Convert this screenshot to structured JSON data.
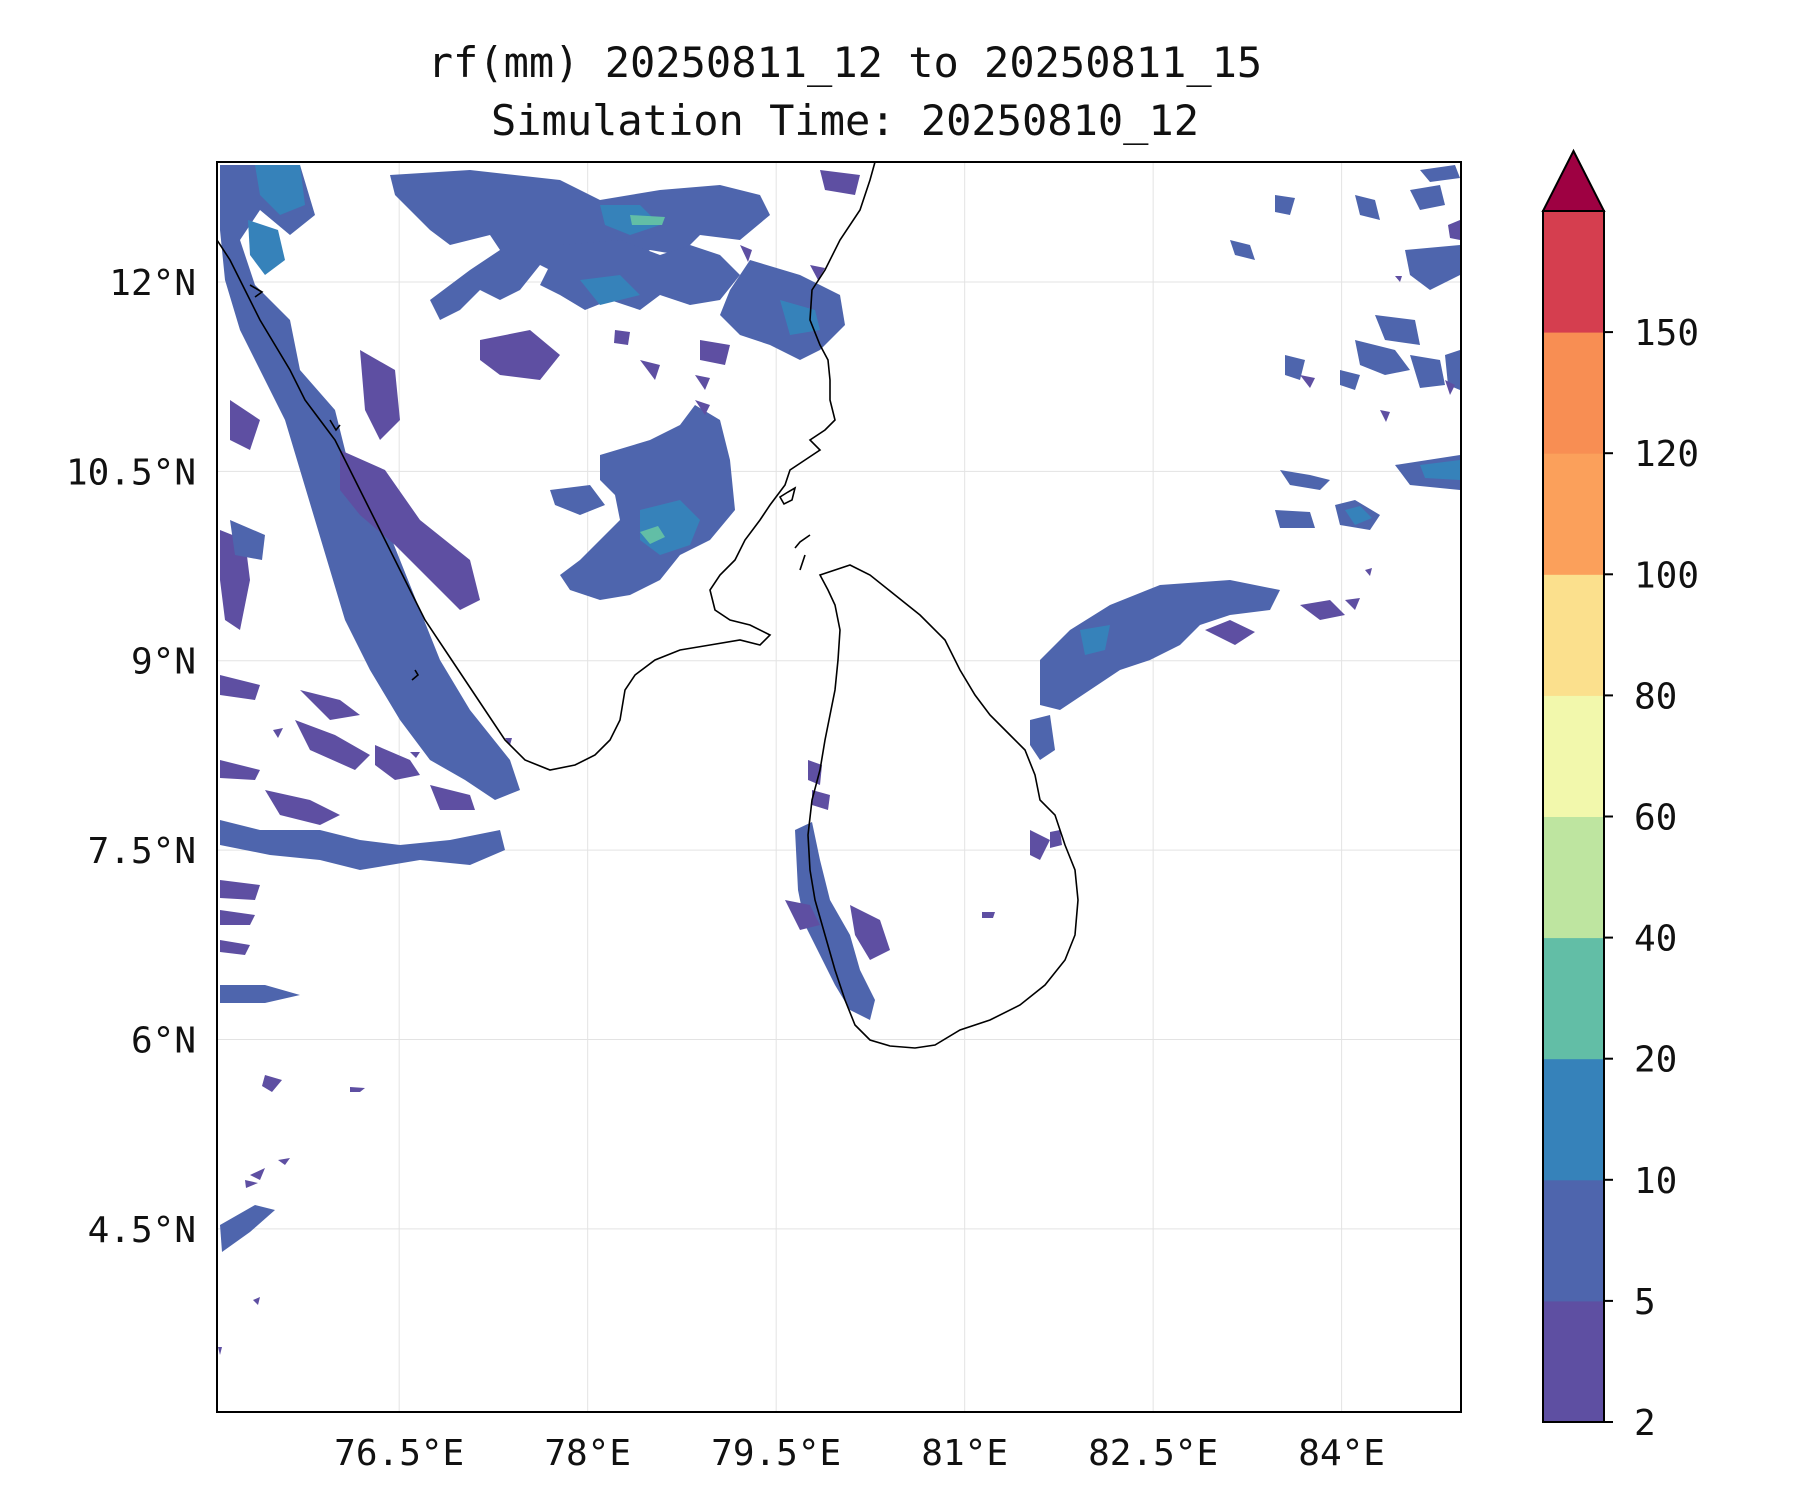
{
  "title_line1": "rf(mm) 20250811_12 to 20250811_15",
  "title_line2": "Simulation Time: 20250810_12",
  "map": {
    "lon_range": [
      75.05,
      84.95
    ],
    "lat_range": [
      3.05,
      12.95
    ],
    "x_ticks": [
      {
        "value": 76.5,
        "label": "76.5°E"
      },
      {
        "value": 78.0,
        "label": "78°E"
      },
      {
        "value": 79.5,
        "label": "79.5°E"
      },
      {
        "value": 81.0,
        "label": "81°E"
      },
      {
        "value": 82.5,
        "label": "82.5°E"
      },
      {
        "value": 84.0,
        "label": "84°E"
      }
    ],
    "y_ticks": [
      {
        "value": 12.0,
        "label": "12°N"
      },
      {
        "value": 10.5,
        "label": "10.5°N"
      },
      {
        "value": 9.0,
        "label": "9°N"
      },
      {
        "value": 7.5,
        "label": "7.5°N"
      },
      {
        "value": 6.0,
        "label": "6°N"
      },
      {
        "value": 4.5,
        "label": "4.5°N"
      }
    ],
    "grid": true
  },
  "colorbar": {
    "levels": [
      2,
      5,
      10,
      20,
      40,
      60,
      80,
      100,
      120,
      150
    ],
    "colors": [
      "#5e4fa2",
      "#4e65ad",
      "#3682ba",
      "#62bea6",
      "#bee5a0",
      "#f2f8ac",
      "#fbe08d",
      "#fba05b",
      "#f88e53",
      "#d53e4f"
    ],
    "extend_color": "#9e0142",
    "tick_labels": [
      "2",
      "5",
      "10",
      "20",
      "40",
      "60",
      "80",
      "100",
      "120",
      "150"
    ]
  },
  "rain_colors": {
    "c2": "#5e4fa2",
    "c5": "#4e65ad",
    "c10": "#3682ba",
    "c20": "#62bea6"
  }
}
